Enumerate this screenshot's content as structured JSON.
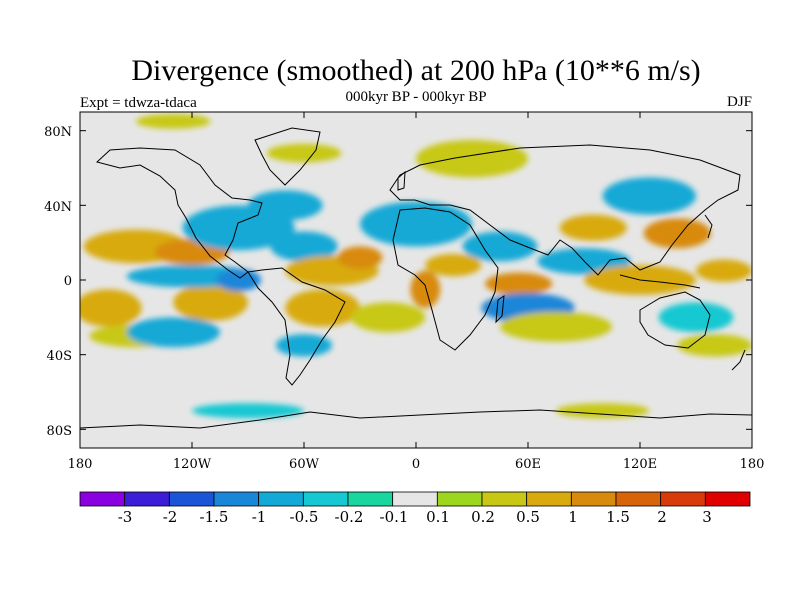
{
  "title": "Divergence (smoothed) at 200 hPa (10**6 m/s)",
  "subtitle": "000kyr BP - 000kyr BP",
  "experiment": "Expt = tdwza-tdaca",
  "season": "DJF",
  "latitude_labels": [
    "80N",
    "40N",
    "0",
    "40S",
    "80S"
  ],
  "longitude_labels": [
    "180",
    "120W",
    "60W",
    "0",
    "60E",
    "120E",
    "180"
  ],
  "colorbar": {
    "colors": [
      "#8a00e0",
      "#3c1ed8",
      "#1a55d8",
      "#1a86d8",
      "#13a9d6",
      "#15c8d2",
      "#18d69e",
      "#e6e6e6",
      "#9cd61e",
      "#c8c814",
      "#d8aa0e",
      "#d88a0c",
      "#d8640a",
      "#d83a0a",
      "#e00000"
    ],
    "labels": [
      "-3",
      "-2",
      "-1.5",
      "-1",
      "-0.5",
      "-0.2",
      "-0.1",
      "0.1",
      "0.2",
      "0.5",
      "1",
      "1.5",
      "2",
      "3"
    ]
  },
  "chart_data": {
    "type": "heatmap",
    "title": "Divergence (smoothed) at 200 hPa (10**6 m/s)",
    "subtitle": "000kyr BP - 000kyr BP",
    "experiment": "Expt = tdwza-tdaca",
    "season": "DJF",
    "projection": "cylindrical equidistant",
    "xrange": [
      -180,
      180
    ],
    "yrange": [
      -90,
      90
    ],
    "xticks": [
      -180,
      -120,
      -60,
      0,
      60,
      120,
      180
    ],
    "yticks": [
      80,
      40,
      0,
      -40,
      -80
    ],
    "levels": [
      -3,
      -2,
      -1.5,
      -1,
      -0.5,
      -0.2,
      -0.1,
      0.1,
      0.2,
      0.5,
      1,
      1.5,
      2,
      3
    ],
    "fields": [
      {
        "lon": -150,
        "lat": 18,
        "rx": 28,
        "ry": 9,
        "value": 0.9
      },
      {
        "lon": -120,
        "lat": 15,
        "rx": 20,
        "ry": 7,
        "value": 1.2
      },
      {
        "lon": -165,
        "lat": -15,
        "rx": 18,
        "ry": 10,
        "value": 0.8
      },
      {
        "lon": -110,
        "lat": -12,
        "rx": 20,
        "ry": 10,
        "value": 0.6
      },
      {
        "lon": -150,
        "lat": -30,
        "rx": 25,
        "ry": 6,
        "value": 0.3
      },
      {
        "lon": -120,
        "lat": 2,
        "rx": 35,
        "ry": 6,
        "value": -0.6
      },
      {
        "lon": -95,
        "lat": 0,
        "rx": 12,
        "ry": 6,
        "value": -1.2
      },
      {
        "lon": -130,
        "lat": -28,
        "rx": 25,
        "ry": 8,
        "value": -0.5
      },
      {
        "lon": -95,
        "lat": 28,
        "rx": 30,
        "ry": 12,
        "value": -0.8
      },
      {
        "lon": -70,
        "lat": 40,
        "rx": 20,
        "ry": 8,
        "value": -0.5
      },
      {
        "lon": -60,
        "lat": 18,
        "rx": 18,
        "ry": 8,
        "value": -0.6
      },
      {
        "lon": -45,
        "lat": 5,
        "rx": 25,
        "ry": 8,
        "value": 0.7
      },
      {
        "lon": -30,
        "lat": 12,
        "rx": 12,
        "ry": 6,
        "value": 1.3
      },
      {
        "lon": -50,
        "lat": -15,
        "rx": 20,
        "ry": 10,
        "value": 0.6
      },
      {
        "lon": -60,
        "lat": -35,
        "rx": 15,
        "ry": 6,
        "value": -0.6
      },
      {
        "lon": -15,
        "lat": -20,
        "rx": 20,
        "ry": 8,
        "value": 0.4
      },
      {
        "lon": 0,
        "lat": 30,
        "rx": 30,
        "ry": 12,
        "value": -0.5
      },
      {
        "lon": 5,
        "lat": -5,
        "rx": 8,
        "ry": 10,
        "value": 1.4
      },
      {
        "lon": 20,
        "lat": 8,
        "rx": 15,
        "ry": 6,
        "value": 0.7
      },
      {
        "lon": 45,
        "lat": 18,
        "rx": 20,
        "ry": 8,
        "value": -0.5
      },
      {
        "lon": 55,
        "lat": -2,
        "rx": 18,
        "ry": 6,
        "value": 1.4
      },
      {
        "lon": 60,
        "lat": -15,
        "rx": 25,
        "ry": 8,
        "value": -1.0
      },
      {
        "lon": 75,
        "lat": -25,
        "rx": 30,
        "ry": 8,
        "value": 0.5
      },
      {
        "lon": 90,
        "lat": 10,
        "rx": 25,
        "ry": 7,
        "value": -0.6
      },
      {
        "lon": 95,
        "lat": 28,
        "rx": 18,
        "ry": 7,
        "value": 0.8
      },
      {
        "lon": 120,
        "lat": 0,
        "rx": 30,
        "ry": 8,
        "value": 0.9
      },
      {
        "lon": 140,
        "lat": 25,
        "rx": 18,
        "ry": 8,
        "value": 1.3
      },
      {
        "lon": 125,
        "lat": 45,
        "rx": 25,
        "ry": 10,
        "value": -0.8
      },
      {
        "lon": 165,
        "lat": 5,
        "rx": 15,
        "ry": 6,
        "value": 0.8
      },
      {
        "lon": 150,
        "lat": -20,
        "rx": 20,
        "ry": 8,
        "value": -0.4
      },
      {
        "lon": 160,
        "lat": -35,
        "rx": 20,
        "ry": 6,
        "value": 0.3
      },
      {
        "lon": 30,
        "lat": 65,
        "rx": 30,
        "ry": 10,
        "value": 0.5
      },
      {
        "lon": -130,
        "lat": 85,
        "rx": 20,
        "ry": 4,
        "value": 0.4
      },
      {
        "lon": -60,
        "lat": 68,
        "rx": 20,
        "ry": 5,
        "value": 0.3
      },
      {
        "lon": -90,
        "lat": -70,
        "rx": 30,
        "ry": 4,
        "value": -0.3
      },
      {
        "lon": 100,
        "lat": -70,
        "rx": 25,
        "ry": 4,
        "value": 0.3
      }
    ]
  }
}
